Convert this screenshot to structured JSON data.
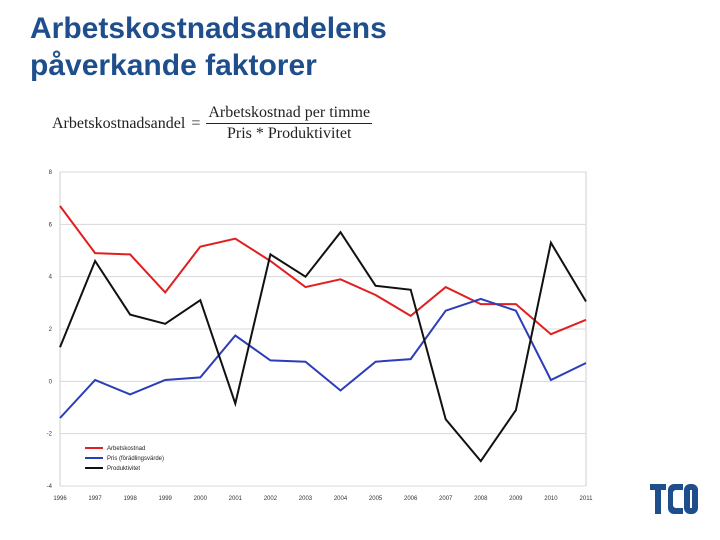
{
  "slide": {
    "title_lines": [
      "Arbetskostnadsandelens",
      "påverkande faktorer"
    ],
    "title_color": "#1f4e8c"
  },
  "formula": {
    "lhs": "Arbetskostnadsandel",
    "equals": "=",
    "numerator": "Arbetskostnad per timme",
    "denominator": "Pris  *  Produktivitet"
  },
  "logo": {
    "text": "TCO",
    "color": "#1f4e8c",
    "icon": "tco-logo"
  },
  "chart_data": {
    "type": "line",
    "x": [
      "1996",
      "1997",
      "1998",
      "1999",
      "2000",
      "2001",
      "2002",
      "2003",
      "2004",
      "2005",
      "2006",
      "2007",
      "2008",
      "2009",
      "2010",
      "2011"
    ],
    "ylim": [
      -4,
      8
    ],
    "yticks": [
      "8",
      "6",
      "4",
      "2",
      "0",
      "-2",
      "-4"
    ],
    "grid": true,
    "legend_position": "bottom-left",
    "series": [
      {
        "name": "Arbetskostnad",
        "color": "#e02020",
        "values": [
          6.7,
          4.9,
          4.85,
          3.4,
          5.15,
          5.45,
          4.6,
          3.6,
          3.9,
          3.3,
          2.5,
          3.6,
          2.95,
          2.95,
          1.8,
          2.35
        ]
      },
      {
        "name": "Pris (förädlingsvärde)",
        "color": "#2b3db8",
        "values": [
          -1.4,
          0.05,
          -0.5,
          0.05,
          0.15,
          1.75,
          0.8,
          0.75,
          -0.35,
          0.75,
          0.85,
          2.7,
          3.15,
          2.7,
          0.05,
          0.7
        ]
      },
      {
        "name": "Produktivitet",
        "color": "#111111",
        "values": [
          1.3,
          4.6,
          2.55,
          2.2,
          3.1,
          -0.85,
          4.85,
          4.0,
          5.7,
          3.65,
          3.5,
          -1.45,
          -3.05,
          -1.1,
          5.3,
          3.05
        ]
      }
    ]
  }
}
